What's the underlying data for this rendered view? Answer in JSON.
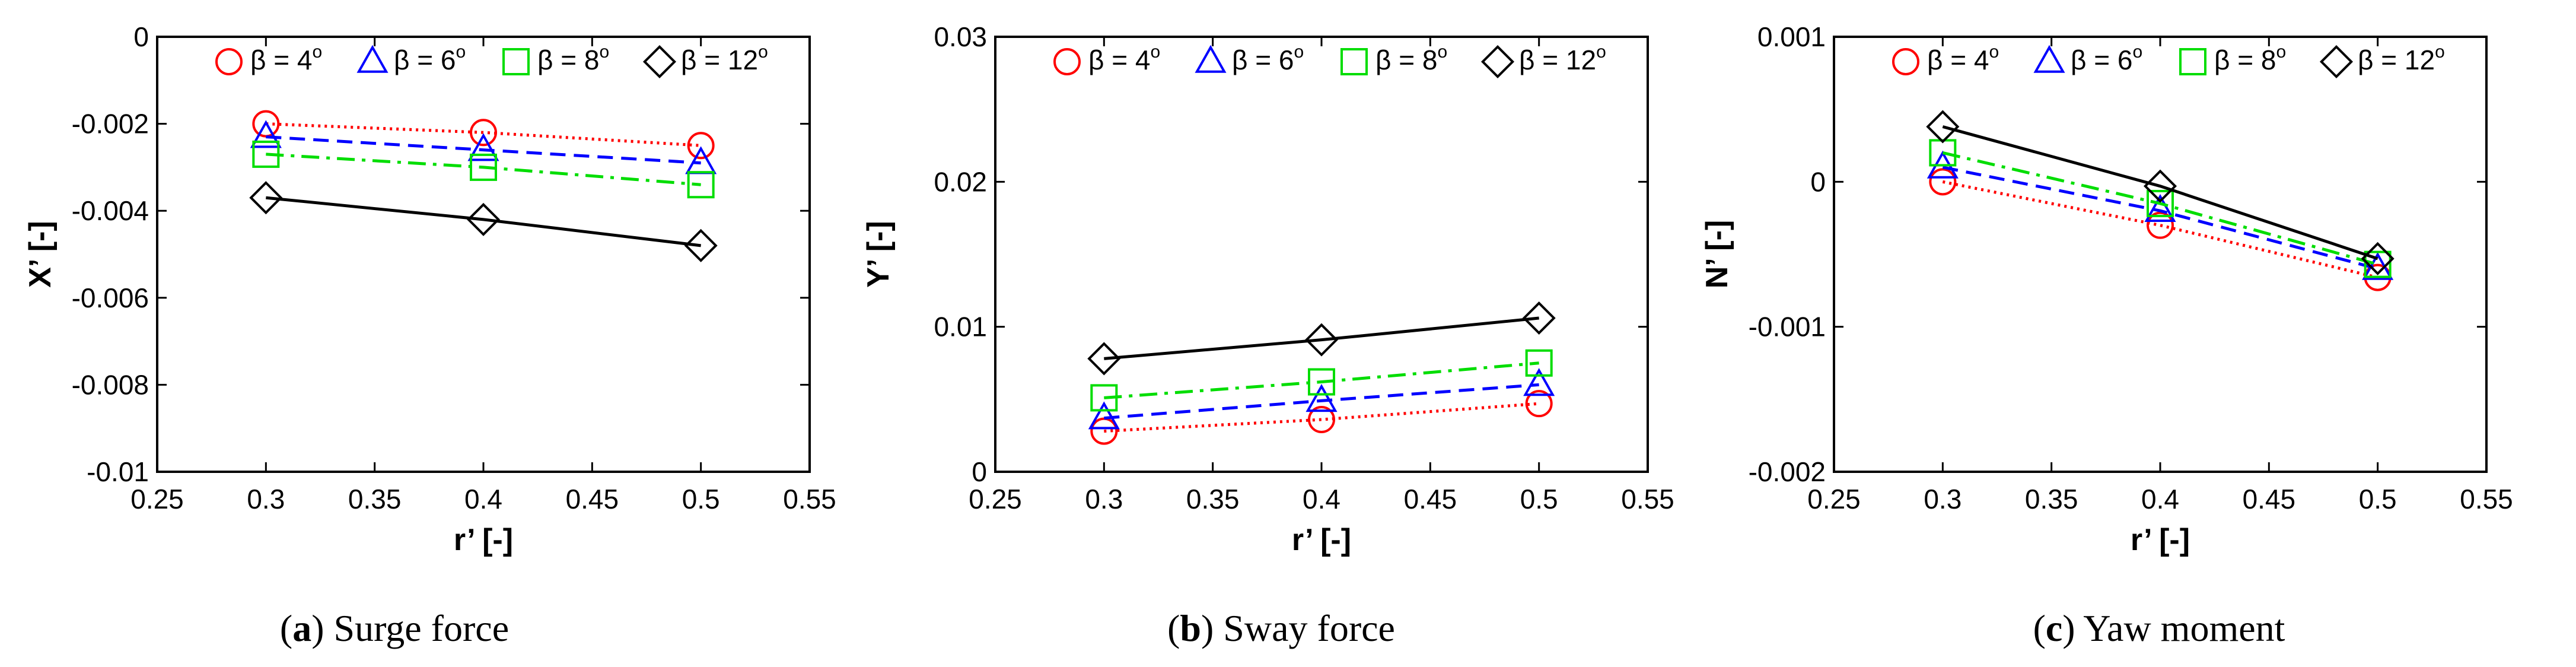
{
  "chart_data": [
    {
      "type": "line",
      "panel": "a",
      "caption_letter": "a",
      "caption_text": "Surge force",
      "xlabel": "r’ [-]",
      "ylabel": "X’ [-]",
      "xlim": [
        0.25,
        0.55
      ],
      "ylim": [
        -0.01,
        0
      ],
      "xticks": [
        0.25,
        0.3,
        0.35,
        0.4,
        0.45,
        0.5,
        0.55
      ],
      "xtick_labels": [
        "0.25",
        "0.3",
        "0.35",
        "0.4",
        "0.45",
        "0.5",
        "0.55"
      ],
      "yticks": [
        -0.01,
        -0.008,
        -0.006,
        -0.004,
        -0.002,
        0
      ],
      "ytick_labels": [
        "-0.01",
        "-0.008",
        "-0.006",
        "-0.004",
        "-0.002",
        "0"
      ],
      "x": [
        0.3,
        0.4,
        0.5
      ],
      "series": [
        {
          "name": "β = 4",
          "sup": "o",
          "marker": "circle",
          "color": "#ff0000",
          "dash": "dotted",
          "values": [
            -0.002,
            -0.0022,
            -0.0025
          ]
        },
        {
          "name": "β = 6",
          "sup": "o",
          "marker": "triangle",
          "color": "#0000ff",
          "dash": "dashed",
          "values": [
            -0.0023,
            -0.0026,
            -0.0029
          ]
        },
        {
          "name": "β = 8",
          "sup": "o",
          "marker": "square",
          "color": "#00dd00",
          "dash": "dashdot",
          "values": [
            -0.0027,
            -0.003,
            -0.0034
          ]
        },
        {
          "name": "β = 12",
          "sup": "o",
          "marker": "diamond",
          "color": "#000000",
          "dash": "solid",
          "values": [
            -0.0037,
            -0.0042,
            -0.0048
          ]
        }
      ]
    },
    {
      "type": "line",
      "panel": "b",
      "caption_letter": "b",
      "caption_text": "Sway force",
      "xlabel": "r’ [-]",
      "ylabel": "Y’ [-]",
      "xlim": [
        0.25,
        0.55
      ],
      "ylim": [
        0,
        0.03
      ],
      "xticks": [
        0.25,
        0.3,
        0.35,
        0.4,
        0.45,
        0.5,
        0.55
      ],
      "xtick_labels": [
        "0.25",
        "0.3",
        "0.35",
        "0.4",
        "0.45",
        "0.5",
        "0.55"
      ],
      "yticks": [
        0,
        0.01,
        0.02,
        0.03
      ],
      "ytick_labels": [
        "0",
        "0.01",
        "0.02",
        "0.03"
      ],
      "x": [
        0.3,
        0.4,
        0.5
      ],
      "series": [
        {
          "name": "β = 4",
          "sup": "o",
          "marker": "circle",
          "color": "#ff0000",
          "dash": "dotted",
          "values": [
            0.0028,
            0.0036,
            0.0047
          ]
        },
        {
          "name": "β = 6",
          "sup": "o",
          "marker": "triangle",
          "color": "#0000ff",
          "dash": "dashed",
          "values": [
            0.0037,
            0.0049,
            0.006
          ]
        },
        {
          "name": "β = 8",
          "sup": "o",
          "marker": "square",
          "color": "#00dd00",
          "dash": "dashdot",
          "values": [
            0.0051,
            0.0062,
            0.0075
          ]
        },
        {
          "name": "β = 12",
          "sup": "o",
          "marker": "diamond",
          "color": "#000000",
          "dash": "solid",
          "values": [
            0.0078,
            0.0091,
            0.0106
          ]
        }
      ]
    },
    {
      "type": "line",
      "panel": "c",
      "caption_letter": "c",
      "caption_text": "Yaw moment",
      "xlabel": "r’ [-]",
      "ylabel": "N’ [-]",
      "xlim": [
        0.25,
        0.55
      ],
      "ylim": [
        -0.002,
        0.001
      ],
      "xticks": [
        0.25,
        0.3,
        0.35,
        0.4,
        0.45,
        0.5,
        0.55
      ],
      "xtick_labels": [
        "0.25",
        "0.3",
        "0.35",
        "0.4",
        "0.45",
        "0.5",
        "0.55"
      ],
      "yticks": [
        -0.002,
        -0.001,
        0,
        0.001
      ],
      "ytick_labels": [
        "-0.002",
        "-0.001",
        "0",
        "0.001"
      ],
      "x": [
        0.3,
        0.4,
        0.5
      ],
      "series": [
        {
          "name": "β = 4",
          "sup": "o",
          "marker": "circle",
          "color": "#ff0000",
          "dash": "dotted",
          "values": [
            0.0,
            -0.0003,
            -0.00066
          ]
        },
        {
          "name": "β = 6",
          "sup": "o",
          "marker": "triangle",
          "color": "#0000ff",
          "dash": "dashed",
          "values": [
            0.0001,
            -0.0002,
            -0.0006
          ]
        },
        {
          "name": "β = 8",
          "sup": "o",
          "marker": "square",
          "color": "#00dd00",
          "dash": "dashdot",
          "values": [
            0.0002,
            -0.00015,
            -0.00057
          ]
        },
        {
          "name": "β = 12",
          "sup": "o",
          "marker": "diamond",
          "color": "#000000",
          "dash": "solid",
          "values": [
            0.00038,
            -3e-05,
            -0.00053
          ]
        }
      ]
    }
  ]
}
